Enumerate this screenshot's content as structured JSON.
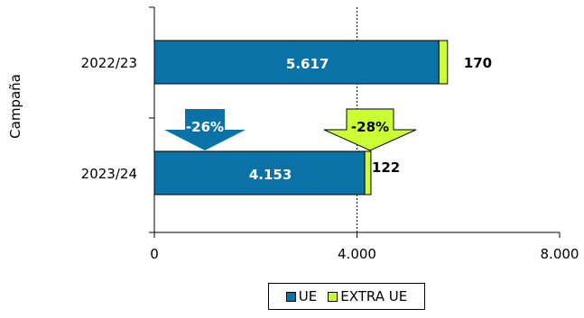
{
  "chart_data": {
    "type": "bar",
    "orientation": "horizontal",
    "stacked": true,
    "ylabel": "Campaña",
    "categories": [
      "2022/23",
      "2023/24"
    ],
    "series": [
      {
        "name": "UE",
        "color": "#0b72a8",
        "values": [
          5617,
          4153
        ],
        "labels": [
          "5.617",
          "4.153"
        ]
      },
      {
        "name": "EXTRA UE",
        "color": "#ccff33",
        "values": [
          170,
          122
        ],
        "labels": [
          "170",
          "122"
        ]
      }
    ],
    "xlim": [
      0,
      8000
    ],
    "xticks": [
      0,
      4000,
      8000
    ],
    "xtick_labels": [
      "0",
      "4.000",
      "8.000"
    ],
    "gridline_at": 4000,
    "annotations": [
      {
        "text": "-26%",
        "series": "UE",
        "color": "#0b72a8",
        "text_color": "#ffffff"
      },
      {
        "text": "-28%",
        "series": "EXTRA UE",
        "color": "#ccff33",
        "text_color": "#000000"
      }
    ],
    "legend_position": "bottom"
  }
}
